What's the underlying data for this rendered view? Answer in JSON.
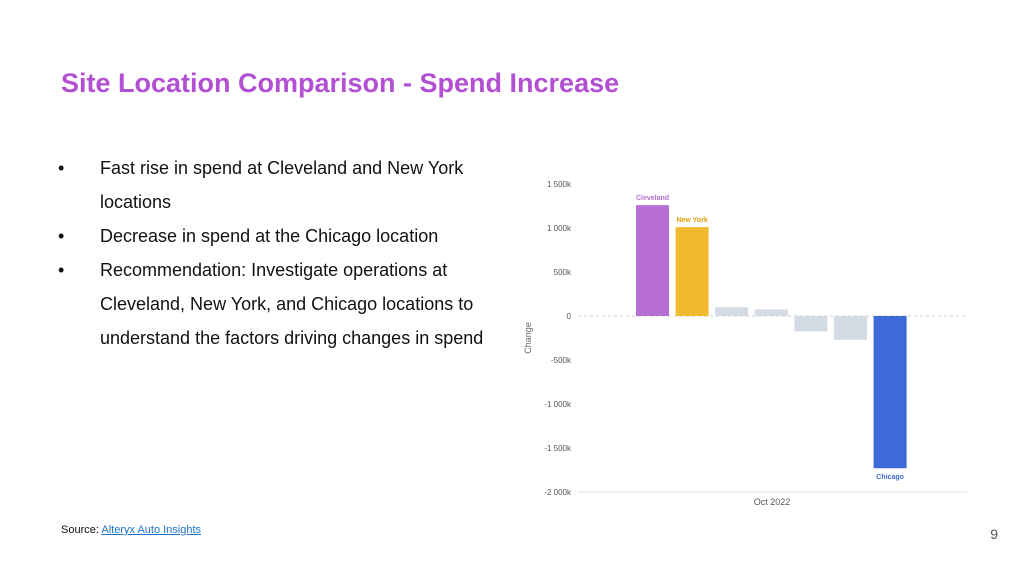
{
  "slide": {
    "title": "Site Location Comparison - Spend Increase",
    "bullet_glyph": "•",
    "bullets": [
      "Fast rise in spend at Cleveland and New York locations",
      "Decrease in spend at the Chicago location",
      "Recommendation: Investigate operations at Cleveland, New York, and Chicago locations to understand the factors driving changes in spend"
    ],
    "source_label": "Source:",
    "source_link": "Alteryx Auto Insights",
    "page_number": "9"
  },
  "chart_data": {
    "type": "bar",
    "title": "",
    "xlabel": "Oct 2022",
    "ylabel": "Change",
    "ylim": [
      -2000000,
      1500000
    ],
    "yticks": [
      1500000,
      1000000,
      500000,
      0,
      -500000,
      -1000000,
      -1500000,
      -2000000
    ],
    "ytick_labels": [
      "1 500k",
      "1 000k",
      "500k",
      "0",
      "-500k",
      "-1 000k",
      "-1 500k",
      "-2 000k"
    ],
    "bars": [
      {
        "label": "Cleveland",
        "value": 1260000,
        "color": "#b76fd6"
      },
      {
        "label": "New York",
        "value": 1010000,
        "color": "#f0b92e"
      },
      {
        "label": "",
        "value": 100000,
        "color": "#d4dbe5"
      },
      {
        "label": "",
        "value": 75000,
        "color": "#d4dbe5"
      },
      {
        "label": "",
        "value": -175000,
        "color": "#d4dbe5"
      },
      {
        "label": "",
        "value": -270000,
        "color": "#d4dbe5"
      },
      {
        "label": "Chicago",
        "value": -1730000,
        "color": "#3d6ad6"
      }
    ],
    "label_colors": {
      "Cleveland": "#b76fd6",
      "New York": "#e0a10c",
      "Chicago": "#3d6ad6"
    },
    "grid": false,
    "zero_line": "dashed"
  }
}
